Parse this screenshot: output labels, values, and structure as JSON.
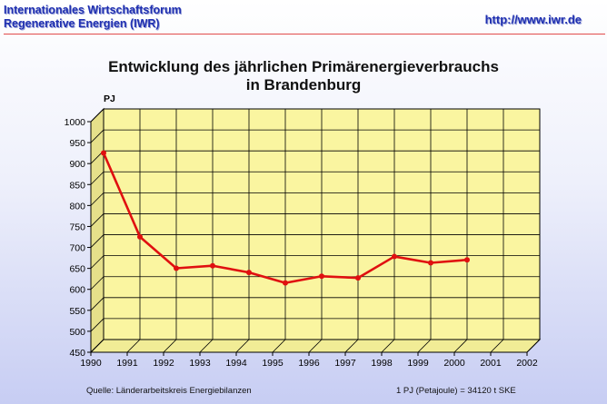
{
  "header": {
    "org_line1": "Internationales Wirtschaftsforum",
    "org_line2": "Regenerative Energien (IWR)",
    "url": "http://www.iwr.de"
  },
  "colors": {
    "header_text": "#1f2fb0",
    "plot_fill": "#faf5a0",
    "series": "#e01010",
    "rule": "#e24b4b"
  },
  "chart_data": {
    "type": "line",
    "title_line1": "Entwicklung des jährlichen Primärenergieverbrauchs",
    "title_line2": "in Brandenburg",
    "ylabel": "PJ",
    "ylim": [
      450,
      1000
    ],
    "y_ticks": [
      450,
      500,
      550,
      600,
      650,
      700,
      750,
      800,
      850,
      900,
      950,
      1000
    ],
    "x_categories": [
      "1990",
      "1991",
      "1992",
      "1993",
      "1994",
      "1995",
      "1996",
      "1997",
      "1998",
      "1999",
      "2000",
      "2001",
      "2002"
    ],
    "series": [
      {
        "values": [
          895,
          695,
          620,
          626,
          610,
          585,
          601,
          597,
          648,
          633,
          640
        ]
      }
    ],
    "grid": true,
    "style": "3d-wall"
  },
  "footer": {
    "source": "Quelle: Länderarbeitskreis Energiebilanzen",
    "note": "1 PJ (Petajoule) = 34120 t SKE"
  }
}
